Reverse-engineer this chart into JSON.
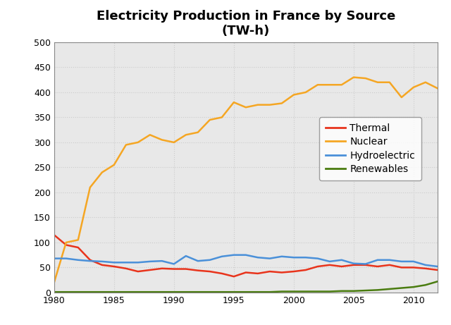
{
  "title": "Electricity Production in France by Source\n(TW-h)",
  "years": [
    1980,
    1981,
    1982,
    1983,
    1984,
    1985,
    1986,
    1987,
    1988,
    1989,
    1990,
    1991,
    1992,
    1993,
    1994,
    1995,
    1996,
    1997,
    1998,
    1999,
    2000,
    2001,
    2002,
    2003,
    2004,
    2005,
    2006,
    2007,
    2008,
    2009,
    2010,
    2011,
    2012
  ],
  "thermal": [
    115,
    95,
    90,
    65,
    55,
    52,
    48,
    42,
    45,
    48,
    47,
    47,
    44,
    42,
    38,
    32,
    40,
    38,
    42,
    40,
    42,
    45,
    52,
    55,
    52,
    55,
    55,
    52,
    55,
    50,
    50,
    48,
    45
  ],
  "nuclear": [
    20,
    100,
    105,
    210,
    240,
    255,
    295,
    300,
    315,
    305,
    300,
    315,
    320,
    345,
    350,
    380,
    370,
    375,
    375,
    378,
    395,
    400,
    415,
    415,
    415,
    430,
    428,
    420,
    420,
    390,
    410,
    420,
    408
  ],
  "hydro": [
    68,
    68,
    65,
    63,
    62,
    60,
    60,
    60,
    62,
    63,
    57,
    73,
    63,
    65,
    72,
    75,
    75,
    70,
    68,
    72,
    70,
    70,
    68,
    62,
    65,
    58,
    57,
    65,
    65,
    62,
    62,
    55,
    52
  ],
  "renewables": [
    1,
    1,
    1,
    1,
    1,
    1,
    1,
    1,
    1,
    1,
    1,
    1,
    1,
    1,
    1,
    1,
    1,
    1,
    1,
    2,
    2,
    2,
    2,
    2,
    3,
    3,
    4,
    5,
    7,
    9,
    11,
    15,
    22
  ],
  "thermal_color": "#e8341c",
  "nuclear_color": "#f5a623",
  "hydro_color": "#4a90d9",
  "renewables_color": "#4a7c10",
  "xlim": [
    1980,
    2012
  ],
  "ylim": [
    0,
    500
  ],
  "yticks": [
    0,
    50,
    100,
    150,
    200,
    250,
    300,
    350,
    400,
    450,
    500
  ],
  "xticks": [
    1980,
    1985,
    1990,
    1995,
    2000,
    2005,
    2010
  ],
  "grid_color": "#cccccc",
  "plot_bg_color": "#e8e8e8",
  "fig_bg_color": "#ffffff",
  "legend_labels": [
    "Thermal",
    "Nuclear",
    "Hydroelectric",
    "Renewables"
  ],
  "line_width": 1.8,
  "title_fontsize": 13,
  "tick_fontsize": 9,
  "legend_fontsize": 10
}
